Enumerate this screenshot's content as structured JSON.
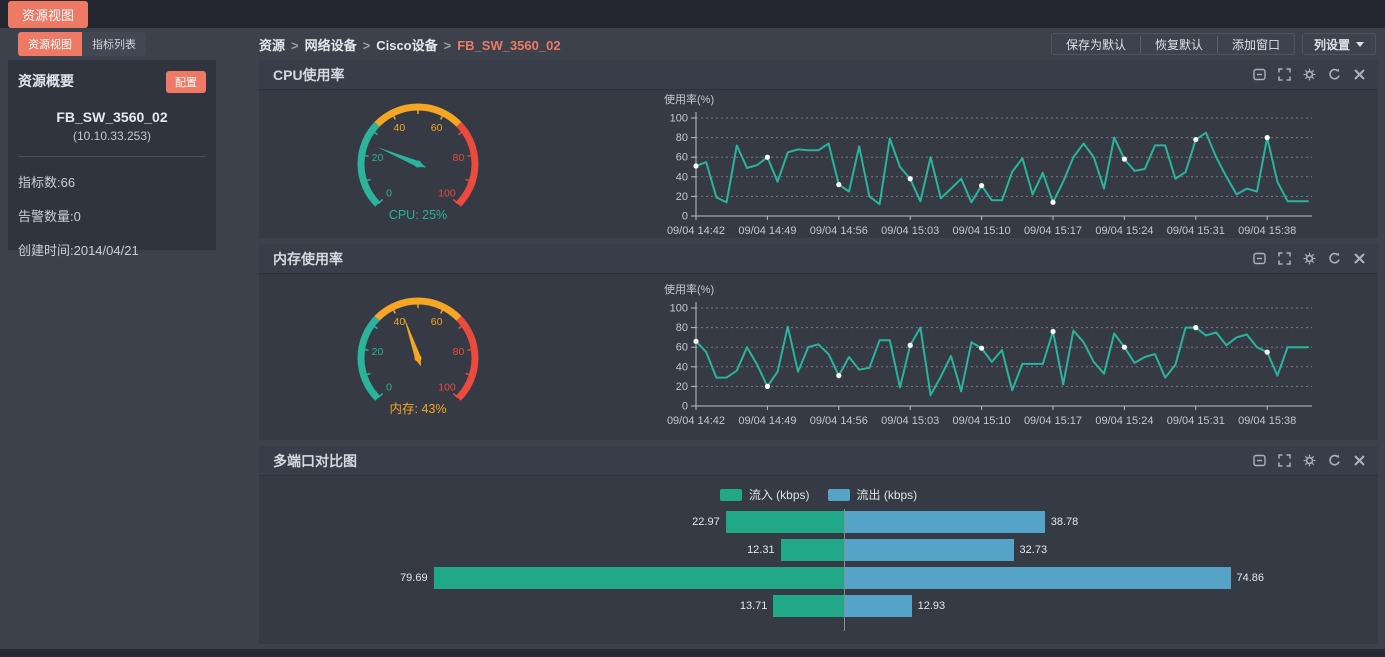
{
  "colors": {
    "accent": "#ee7a66",
    "teal": "#2ab49c",
    "green_bar": "#21a888",
    "blue": "#55a3c7",
    "amber": "#f5a623",
    "red": "#eb4b3d"
  },
  "top_bar": {
    "tab": "资源视图"
  },
  "sidebar": {
    "tabs": [
      {
        "label": "资源视图"
      },
      {
        "label": "指标列表"
      }
    ],
    "summary": {
      "title": "资源概要",
      "config_button": "配置",
      "device_name": "FB_SW_3560_02",
      "device_ip": "(10.10.33.253)",
      "stats": [
        "指标数:66",
        "告警数量:0",
        "创建时间:2014/04/21"
      ]
    }
  },
  "breadcrumb": {
    "items": [
      "资源",
      "网络设备",
      "Cisco设备",
      "FB_SW_3560_02"
    ],
    "separator": ">"
  },
  "toolbar": {
    "buttons": [
      "保存为默认",
      "恢复默认",
      "添加窗口"
    ],
    "column_settings": "列设置"
  },
  "panel_icons": [
    "collapse-icon",
    "fullscreen-icon",
    "settings-icon",
    "refresh-icon",
    "close-icon"
  ],
  "panels": {
    "cpu": {
      "title": "CPU使用率"
    },
    "memory": {
      "title": "内存使用率"
    },
    "ports": {
      "title": "多端口对比图"
    }
  },
  "chart_data": [
    {
      "type": "gauge",
      "title": "CPU使用率",
      "value": 25,
      "label": "CPU: 25%",
      "min": 0,
      "max": 100,
      "tick_step": 10,
      "label_step": 20,
      "color": "#2ab49c",
      "segments": [
        {
          "from": 0,
          "to": 33,
          "color": "#2ab49c"
        },
        {
          "from": 33,
          "to": 67,
          "color": "#f5a623"
        },
        {
          "from": 67,
          "to": 100,
          "color": "#eb4b3d"
        }
      ]
    },
    {
      "type": "line",
      "title": "CPU使用率",
      "ylabel": "使用率(%)",
      "ylim": [
        0,
        100
      ],
      "yticks": [
        0,
        20,
        40,
        60,
        80,
        100
      ],
      "grid": true,
      "color": "#2ab49c",
      "points_per_tick": 7,
      "x_ticklabels": [
        "09/04 14:42",
        "09/04 14:49",
        "09/04 14:56",
        "09/04 15:03",
        "09/04 15:10",
        "09/04 15:17",
        "09/04 15:24",
        "09/04 15:31",
        "09/04 15:38"
      ],
      "values": [
        51,
        55,
        19,
        14,
        72,
        49,
        52,
        60,
        35,
        65,
        68,
        67,
        67,
        74,
        32,
        25,
        71,
        20,
        12,
        79,
        50,
        38,
        15,
        60,
        18,
        28,
        38,
        14,
        31,
        16,
        16,
        45,
        59,
        22,
        44,
        14,
        35,
        60,
        74,
        60,
        28,
        80,
        58,
        46,
        48,
        72,
        72,
        38,
        45,
        78,
        85,
        60,
        40,
        22,
        28,
        25,
        80,
        35,
        15,
        15,
        15
      ]
    },
    {
      "type": "gauge",
      "title": "内存使用率",
      "value": 43,
      "label": "内存: 43%",
      "min": 0,
      "max": 100,
      "tick_step": 10,
      "label_step": 20,
      "color": "#f5a623",
      "segments": [
        {
          "from": 0,
          "to": 33,
          "color": "#2ab49c"
        },
        {
          "from": 33,
          "to": 67,
          "color": "#f5a623"
        },
        {
          "from": 67,
          "to": 100,
          "color": "#eb4b3d"
        }
      ]
    },
    {
      "type": "line",
      "title": "内存使用率",
      "ylabel": "使用率(%)",
      "ylim": [
        0,
        100
      ],
      "yticks": [
        0,
        20,
        40,
        60,
        80,
        100
      ],
      "grid": true,
      "color": "#2ab49c",
      "points_per_tick": 7,
      "x_ticklabels": [
        "09/04 14:42",
        "09/04 14:49",
        "09/04 14:56",
        "09/04 15:03",
        "09/04 15:10",
        "09/04 15:17",
        "09/04 15:24",
        "09/04 15:31",
        "09/04 15:38"
      ],
      "values": [
        66,
        55,
        29,
        29,
        36,
        60,
        42,
        20,
        35,
        81,
        35,
        60,
        63,
        53,
        31,
        50,
        37,
        39,
        67,
        67,
        19,
        62,
        80,
        11,
        30,
        51,
        15,
        65,
        59,
        45,
        57,
        16,
        43,
        43,
        43,
        76,
        22,
        77,
        65,
        45,
        33,
        74,
        60,
        44,
        50,
        53,
        29,
        42,
        80,
        80,
        72,
        75,
        62,
        70,
        73,
        60,
        55,
        31,
        60,
        60,
        60
      ]
    },
    {
      "type": "bar",
      "title": "多端口对比图",
      "orientation": "diverging-horizontal",
      "legend_position": "top",
      "xmax": 80,
      "series": [
        {
          "name": "流入 (kbps)",
          "color": "#21a888",
          "values": [
            22.97,
            12.31,
            79.69,
            13.71
          ]
        },
        {
          "name": "流出 (kbps)",
          "color": "#55a3c7",
          "values": [
            38.78,
            32.73,
            74.86,
            12.93
          ]
        }
      ]
    }
  ]
}
